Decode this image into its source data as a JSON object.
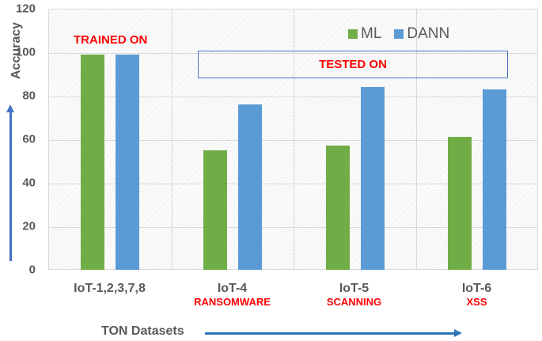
{
  "chart_data": {
    "type": "bar",
    "title": "",
    "xlabel": "TON Datasets",
    "ylabel": "Accuracy",
    "ylim": [
      0,
      120
    ],
    "yticks": [
      0,
      20,
      40,
      60,
      80,
      100,
      120
    ],
    "grid": true,
    "legend_position": "top-right",
    "categories": [
      "IoT-1,2,3,7,8",
      "IoT-4",
      "IoT-5",
      "IoT-6"
    ],
    "category_sublabels": [
      "",
      "RANSOMWARE",
      "SCANNING",
      "XSS"
    ],
    "series": [
      {
        "name": "ML",
        "color": "#70ad47",
        "values": [
          99,
          55,
          57,
          61
        ]
      },
      {
        "name": "DANN",
        "color": "#5b9bd5",
        "values": [
          99,
          76,
          84,
          83
        ]
      }
    ],
    "annotations": [
      {
        "text": "TRAINED ON",
        "color": "#ff0000",
        "target": "IoT-1,2,3,7,8"
      },
      {
        "text": "TESTED ON",
        "color": "#ff0000",
        "boxed": true,
        "box_color": "#4472c4",
        "target": [
          "IoT-4",
          "IoT-5",
          "IoT-6"
        ]
      }
    ]
  },
  "labels": {
    "ylabel": "Accuracy",
    "xlabel": "TON Datasets",
    "trained_on": "TRAINED ON",
    "tested_on": "TESTED ON",
    "legend": [
      "ML",
      "DANN"
    ],
    "yticks": [
      "0",
      "20",
      "40",
      "60",
      "80",
      "100",
      "120"
    ],
    "categories": [
      {
        "main": "IoT-1,2,3,7,8",
        "sub": ""
      },
      {
        "main": "IoT-4",
        "sub": "RANSOMWARE"
      },
      {
        "main": "IoT-5",
        "sub": "SCANNING"
      },
      {
        "main": "IoT-6",
        "sub": "XSS"
      }
    ]
  },
  "colors": {
    "ml": "#70ad47",
    "dann": "#5b9bd5",
    "annotation_red": "#ff0000",
    "arrow_blue": "#2e75b6",
    "axis_text": "#595959"
  }
}
